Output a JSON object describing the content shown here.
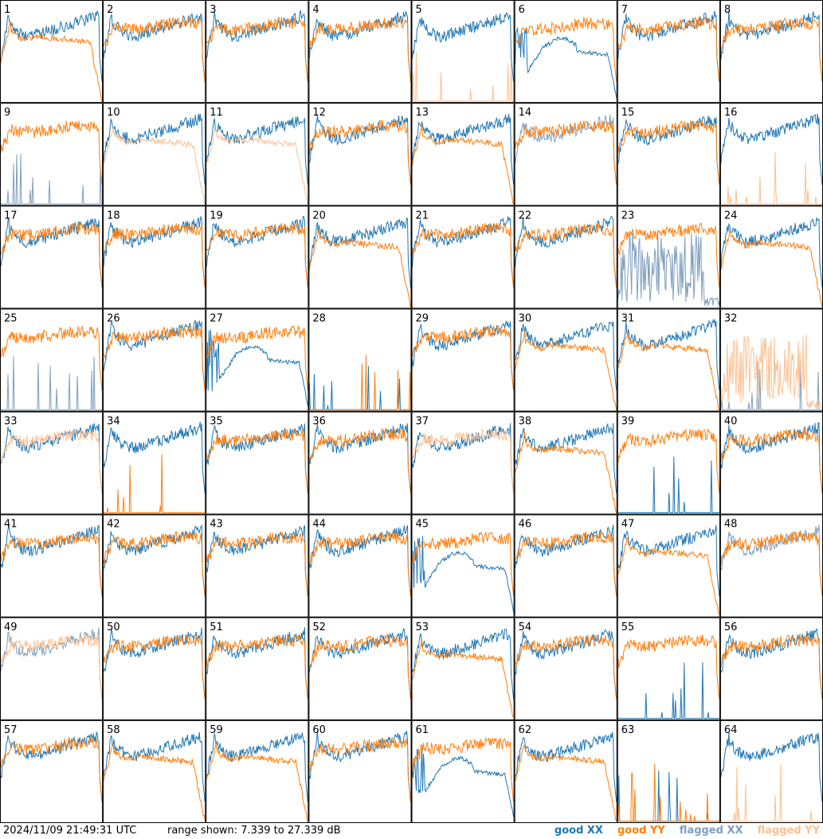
{
  "footer": {
    "timestamp": "2024/11/09 21:49:31 UTC",
    "range_text": "range shown: 7.339 to 27.339 dB"
  },
  "colors": {
    "good_xx": "#1f77b4",
    "good_yy": "#ff7f0e",
    "flagged_xx": "#7f9fbf",
    "flagged_yy": "#ffbf8f"
  },
  "chart_data": {
    "type": "line",
    "grid": "8x8 small multiples",
    "panel_labels": [
      "1",
      "2",
      "3",
      "4",
      "5",
      "6",
      "7",
      "8",
      "9",
      "10",
      "11",
      "12",
      "13",
      "14",
      "15",
      "16",
      "17",
      "18",
      "19",
      "20",
      "21",
      "22",
      "23",
      "24",
      "25",
      "26",
      "27",
      "28",
      "29",
      "30",
      "31",
      "32",
      "33",
      "34",
      "35",
      "36",
      "37",
      "38",
      "39",
      "40",
      "41",
      "42",
      "43",
      "44",
      "45",
      "46",
      "47",
      "48",
      "49",
      "50",
      "51",
      "52",
      "53",
      "54",
      "55",
      "56",
      "57",
      "58",
      "59",
      "60",
      "61",
      "62",
      "63",
      "64"
    ],
    "ylim": [
      7.339,
      27.339
    ],
    "yunit": "dB",
    "legend": [
      {
        "key": "good_xx",
        "label": "good XX",
        "color": "#1f77b4"
      },
      {
        "key": "good_yy",
        "label": "good YY",
        "color": "#ff7f0e"
      },
      {
        "key": "flagged_xx",
        "label": "flagged XX",
        "color": "#7f9fbf"
      },
      {
        "key": "flagged_yy",
        "label": "flagged YY",
        "color": "#ffbf8f"
      }
    ],
    "legend_position": "bottom-right",
    "panels": {
      "1": {
        "xx": "good",
        "yy": "good",
        "xx_shape": "normal",
        "yy_shape": "drop"
      },
      "2": {
        "xx": "good",
        "yy": "good",
        "xx_shape": "normal",
        "yy_shape": "normal"
      },
      "3": {
        "xx": "good",
        "yy": "good",
        "xx_shape": "normal",
        "yy_shape": "normal"
      },
      "4": {
        "xx": "good",
        "yy": "good",
        "xx_shape": "normal",
        "yy_shape": "normal"
      },
      "5": {
        "xx": "good",
        "yy": "flagged",
        "xx_shape": "normal",
        "yy_shape": "zero"
      },
      "6": {
        "xx": "good",
        "yy": "good",
        "xx_shape": "dip",
        "yy_shape": "normal"
      },
      "7": {
        "xx": "good",
        "yy": "good",
        "xx_shape": "normal",
        "yy_shape": "normal"
      },
      "8": {
        "xx": "good",
        "yy": "good",
        "xx_shape": "normal",
        "yy_shape": "normal"
      },
      "9": {
        "xx": "flagged",
        "yy": "good",
        "xx_shape": "zero",
        "yy_shape": "normal"
      },
      "10": {
        "xx": "good",
        "yy": "flagged",
        "xx_shape": "normal",
        "yy_shape": "drop"
      },
      "11": {
        "xx": "good",
        "yy": "flagged",
        "xx_shape": "normal",
        "yy_shape": "drop"
      },
      "12": {
        "xx": "good",
        "yy": "good",
        "xx_shape": "normal",
        "yy_shape": "normal"
      },
      "13": {
        "xx": "good",
        "yy": "good",
        "xx_shape": "normal",
        "yy_shape": "drop"
      },
      "14": {
        "xx": "flagged",
        "yy": "good",
        "xx_shape": "normal",
        "yy_shape": "normal"
      },
      "15": {
        "xx": "good",
        "yy": "good",
        "xx_shape": "normal",
        "yy_shape": "normal"
      },
      "16": {
        "xx": "good",
        "yy": "flagged",
        "xx_shape": "normal",
        "yy_shape": "zero"
      },
      "17": {
        "xx": "good",
        "yy": "good",
        "xx_shape": "normal",
        "yy_shape": "normal"
      },
      "18": {
        "xx": "good",
        "yy": "good",
        "xx_shape": "normal",
        "yy_shape": "normal"
      },
      "19": {
        "xx": "good",
        "yy": "good",
        "xx_shape": "normal",
        "yy_shape": "normal"
      },
      "20": {
        "xx": "good",
        "yy": "good",
        "xx_shape": "normal",
        "yy_shape": "drop"
      },
      "21": {
        "xx": "good",
        "yy": "good",
        "xx_shape": "normal",
        "yy_shape": "normal"
      },
      "22": {
        "xx": "good",
        "yy": "good",
        "xx_shape": "normal",
        "yy_shape": "normal"
      },
      "23": {
        "xx": "flagged",
        "yy": "good",
        "xx_shape": "noise",
        "yy_shape": "normal"
      },
      "24": {
        "xx": "good",
        "yy": "good",
        "xx_shape": "normal",
        "yy_shape": "drop"
      },
      "25": {
        "xx": "flagged",
        "yy": "good",
        "xx_shape": "zero",
        "yy_shape": "normal"
      },
      "26": {
        "xx": "good",
        "yy": "good",
        "xx_shape": "normal",
        "yy_shape": "normal"
      },
      "27": {
        "xx": "good",
        "yy": "good",
        "xx_shape": "dip",
        "yy_shape": "normal"
      },
      "28": {
        "xx": "good",
        "yy": "good",
        "xx_shape": "zero",
        "yy_shape": "zero"
      },
      "29": {
        "xx": "good",
        "yy": "good",
        "xx_shape": "normal",
        "yy_shape": "normal"
      },
      "30": {
        "xx": "good",
        "yy": "good",
        "xx_shape": "normal",
        "yy_shape": "drop"
      },
      "31": {
        "xx": "good",
        "yy": "good",
        "xx_shape": "normal",
        "yy_shape": "drop"
      },
      "32": {
        "xx": "flagged",
        "yy": "flagged",
        "xx_shape": "zero",
        "yy_shape": "noise"
      },
      "33": {
        "xx": "good",
        "yy": "flagged",
        "xx_shape": "normal",
        "yy_shape": "normal"
      },
      "34": {
        "xx": "good",
        "yy": "good",
        "xx_shape": "normal",
        "yy_shape": "zero"
      },
      "35": {
        "xx": "good",
        "yy": "good",
        "xx_shape": "normal",
        "yy_shape": "normal"
      },
      "36": {
        "xx": "good",
        "yy": "good",
        "xx_shape": "normal",
        "yy_shape": "normal"
      },
      "37": {
        "xx": "good",
        "yy": "flagged",
        "xx_shape": "normal",
        "yy_shape": "normal"
      },
      "38": {
        "xx": "good",
        "yy": "good",
        "xx_shape": "normal",
        "yy_shape": "drop"
      },
      "39": {
        "xx": "good",
        "yy": "good",
        "xx_shape": "zero",
        "yy_shape": "normal"
      },
      "40": {
        "xx": "good",
        "yy": "good",
        "xx_shape": "normal",
        "yy_shape": "normal"
      },
      "41": {
        "xx": "good",
        "yy": "good",
        "xx_shape": "normal",
        "yy_shape": "normal"
      },
      "42": {
        "xx": "good",
        "yy": "good",
        "xx_shape": "normal",
        "yy_shape": "normal"
      },
      "43": {
        "xx": "good",
        "yy": "good",
        "xx_shape": "normal",
        "yy_shape": "normal"
      },
      "44": {
        "xx": "good",
        "yy": "good",
        "xx_shape": "normal",
        "yy_shape": "normal"
      },
      "45": {
        "xx": "good",
        "yy": "good",
        "xx_shape": "dip",
        "yy_shape": "normal"
      },
      "46": {
        "xx": "good",
        "yy": "good",
        "xx_shape": "normal",
        "yy_shape": "normal"
      },
      "47": {
        "xx": "good",
        "yy": "good",
        "xx_shape": "normal",
        "yy_shape": "drop"
      },
      "48": {
        "xx": "flagged",
        "yy": "good",
        "xx_shape": "normal",
        "yy_shape": "normal"
      },
      "49": {
        "xx": "flagged",
        "yy": "flagged",
        "xx_shape": "normal",
        "yy_shape": "normal"
      },
      "50": {
        "xx": "good",
        "yy": "good",
        "xx_shape": "normal",
        "yy_shape": "normal"
      },
      "51": {
        "xx": "good",
        "yy": "good",
        "xx_shape": "normal",
        "yy_shape": "normal"
      },
      "52": {
        "xx": "good",
        "yy": "good",
        "xx_shape": "normal",
        "yy_shape": "normal"
      },
      "53": {
        "xx": "good",
        "yy": "good",
        "xx_shape": "normal",
        "yy_shape": "drop"
      },
      "54": {
        "xx": "good",
        "yy": "good",
        "xx_shape": "normal",
        "yy_shape": "normal"
      },
      "55": {
        "xx": "good",
        "yy": "good",
        "xx_shape": "zero",
        "yy_shape": "normal"
      },
      "56": {
        "xx": "good",
        "yy": "good",
        "xx_shape": "normal",
        "yy_shape": "normal"
      },
      "57": {
        "xx": "good",
        "yy": "good",
        "xx_shape": "normal",
        "yy_shape": "normal"
      },
      "58": {
        "xx": "good",
        "yy": "good",
        "xx_shape": "normal",
        "yy_shape": "drop"
      },
      "59": {
        "xx": "good",
        "yy": "good",
        "xx_shape": "normal",
        "yy_shape": "drop"
      },
      "60": {
        "xx": "good",
        "yy": "good",
        "xx_shape": "normal",
        "yy_shape": "normal"
      },
      "61": {
        "xx": "good",
        "yy": "good",
        "xx_shape": "dip",
        "yy_shape": "normal"
      },
      "62": {
        "xx": "good",
        "yy": "good",
        "xx_shape": "normal",
        "yy_shape": "drop"
      },
      "63": {
        "xx": "good",
        "yy": "good",
        "xx_shape": "zero",
        "yy_shape": "zero"
      },
      "64": {
        "xx": "good",
        "yy": "flagged",
        "xx_shape": "normal",
        "yy_shape": "zero"
      }
    }
  }
}
